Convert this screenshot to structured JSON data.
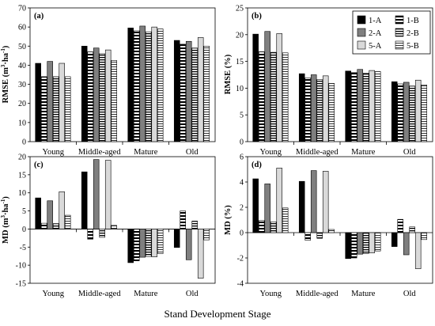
{
  "figure": {
    "xlabel": "Stand Development Stage",
    "categories": [
      "Young",
      "Middle-aged",
      "Mature",
      "Old"
    ],
    "legend": {
      "placement": "top-right of panel (b)",
      "entries": [
        "1-A",
        "1-B",
        "2-A",
        "2-B",
        "5-A",
        "5-B"
      ]
    }
  },
  "chart_data": [
    {
      "type": "bar",
      "panel_label": "(a)",
      "ylabel_main": "RMSE (m",
      "ylabel_sup1": "3",
      "ylabel_mid": "·ha",
      "ylabel_sup2": "-1",
      "ylabel_end": ")",
      "ylim": [
        0,
        70
      ],
      "yticks": [
        "0",
        "10",
        "20",
        "30",
        "40",
        "50",
        "60",
        "70"
      ],
      "ytick_values": [
        0,
        10,
        20,
        30,
        40,
        50,
        60,
        70
      ],
      "categories": [
        "Young",
        "Middle-aged",
        "Mature",
        "Old"
      ],
      "series": [
        {
          "name": "1-A",
          "values": [
            41,
            50,
            59.5,
            53
          ]
        },
        {
          "name": "1-B",
          "values": [
            34,
            47,
            58,
            51
          ]
        },
        {
          "name": "2-A",
          "values": [
            42,
            49,
            60.5,
            52.5
          ]
        },
        {
          "name": "2-B",
          "values": [
            34,
            46,
            57.5,
            49
          ]
        },
        {
          "name": "5-A",
          "values": [
            41,
            48,
            60,
            54.5
          ]
        },
        {
          "name": "5-B",
          "values": [
            34,
            42.5,
            59,
            50
          ]
        }
      ]
    },
    {
      "type": "bar",
      "panel_label": "(b)",
      "ylabel_main": "RMSE (%)",
      "ylim": [
        0,
        25
      ],
      "yticks": [
        "0",
        "5",
        "10",
        "15",
        "20",
        "25"
      ],
      "ytick_values": [
        0,
        5,
        10,
        15,
        20,
        25
      ],
      "categories": [
        "Young",
        "Middle-aged",
        "Mature",
        "Old"
      ],
      "series": [
        {
          "name": "1-A",
          "values": [
            20.1,
            12.7,
            13.2,
            11.2
          ]
        },
        {
          "name": "1-B",
          "values": [
            16.8,
            11.9,
            12.9,
            10.8
          ]
        },
        {
          "name": "2-A",
          "values": [
            20.6,
            12.5,
            13.5,
            11.1
          ]
        },
        {
          "name": "2-B",
          "values": [
            16.7,
            11.6,
            12.8,
            10.4
          ]
        },
        {
          "name": "5-A",
          "values": [
            20.2,
            12.3,
            13.3,
            11.5
          ]
        },
        {
          "name": "5-B",
          "values": [
            16.6,
            10.9,
            13.1,
            10.6
          ]
        }
      ]
    },
    {
      "type": "bar",
      "panel_label": "(c)",
      "ylabel_main": "MD (m",
      "ylabel_sup1": "3",
      "ylabel_mid": "·ha",
      "ylabel_sup2": "-1",
      "ylabel_end": ")",
      "ylim": [
        -15,
        20
      ],
      "yticks": [
        "-15",
        "-10",
        "-5",
        "0",
        "5",
        "10",
        "15",
        "20"
      ],
      "ytick_values": [
        -15,
        -10,
        -5,
        0,
        5,
        10,
        15,
        20
      ],
      "categories": [
        "Young",
        "Middle-aged",
        "Mature",
        "Old"
      ],
      "series": [
        {
          "name": "1-A",
          "values": [
            8.6,
            15.8,
            -9.3,
            -5.1
          ]
        },
        {
          "name": "1-B",
          "values": [
            1.6,
            -2.8,
            -8.8,
            5.0
          ]
        },
        {
          "name": "2-A",
          "values": [
            7.8,
            19.2,
            -7.8,
            -8.5
          ]
        },
        {
          "name": "2-B",
          "values": [
            1.5,
            -2.3,
            -7.6,
            2.2
          ]
        },
        {
          "name": "5-A",
          "values": [
            10.3,
            19.0,
            -7.7,
            -13.6
          ]
        },
        {
          "name": "5-B",
          "values": [
            3.8,
            1.0,
            -6.8,
            -3.0
          ]
        }
      ]
    },
    {
      "type": "bar",
      "panel_label": "(d)",
      "ylabel_main": "MD  (%)",
      "ylim": [
        -4,
        6
      ],
      "yticks": [
        "-4",
        "-2",
        "0",
        "2",
        "4",
        "6"
      ],
      "ytick_values": [
        -4,
        -2,
        0,
        2,
        4,
        6
      ],
      "categories": [
        "Young",
        "Middle-aged",
        "Mature",
        "Old"
      ],
      "series": [
        {
          "name": "1-A",
          "values": [
            4.25,
            4.05,
            -2.05,
            -1.1
          ]
        },
        {
          "name": "1-B",
          "values": [
            0.95,
            -0.6,
            -2.0,
            1.05
          ]
        },
        {
          "name": "2-A",
          "values": [
            3.85,
            4.9,
            -1.7,
            -1.75
          ]
        },
        {
          "name": "2-B",
          "values": [
            0.85,
            -0.45,
            -1.65,
            0.45
          ]
        },
        {
          "name": "5-A",
          "values": [
            5.1,
            4.85,
            -1.6,
            -2.85
          ]
        },
        {
          "name": "5-B",
          "values": [
            1.95,
            0.25,
            -1.45,
            -0.55
          ]
        }
      ]
    }
  ],
  "colors": {
    "axis": "#000000",
    "s1A": "#000000",
    "s2A": "#7f7f7f",
    "s5A": "#d9d9d9",
    "stripe": "#000000",
    "stripe_bg": "#ffffff"
  }
}
